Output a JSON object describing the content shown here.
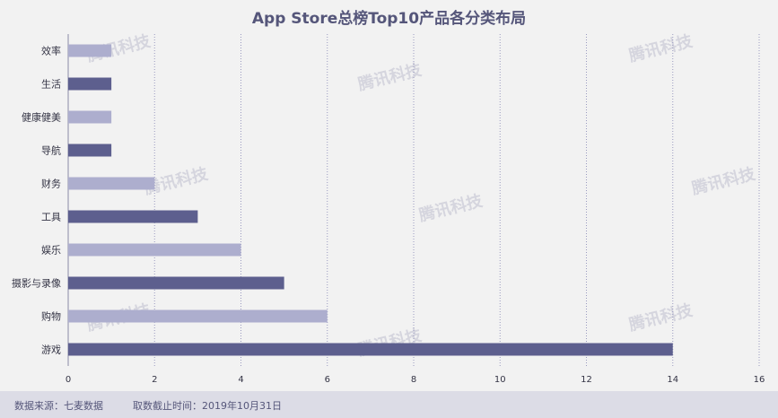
{
  "chart_data": {
    "type": "bar",
    "orientation": "horizontal",
    "title": "App Store总榜Top10产品各分类布局",
    "categories": [
      "效率",
      "生活",
      "健康健美",
      "导航",
      "财务",
      "工具",
      "娱乐",
      "摄影与录像",
      "购物",
      "游戏"
    ],
    "values": [
      1,
      1,
      1,
      1,
      2,
      3,
      4,
      5,
      6,
      14
    ],
    "xlim": [
      0,
      16
    ],
    "xticks": [
      "0",
      "2",
      "4",
      "6",
      "8",
      "10",
      "12",
      "14",
      "16"
    ],
    "grid": "vertical dotted",
    "bar_colors": [
      "#adaece",
      "#5d5f8e",
      "#adaece",
      "#5d5f8e",
      "#adaece",
      "#5d5f8e",
      "#adaece",
      "#5d5f8e",
      "#adaece",
      "#5d5f8e"
    ]
  },
  "footer": {
    "source": "数据来源：七麦数据",
    "date": "取数截止时间：2019年10月31日"
  },
  "watermark": "腾讯科技",
  "colors": {
    "dark": "#5d5f8e",
    "light": "#adaece",
    "text": "#55567a"
  }
}
